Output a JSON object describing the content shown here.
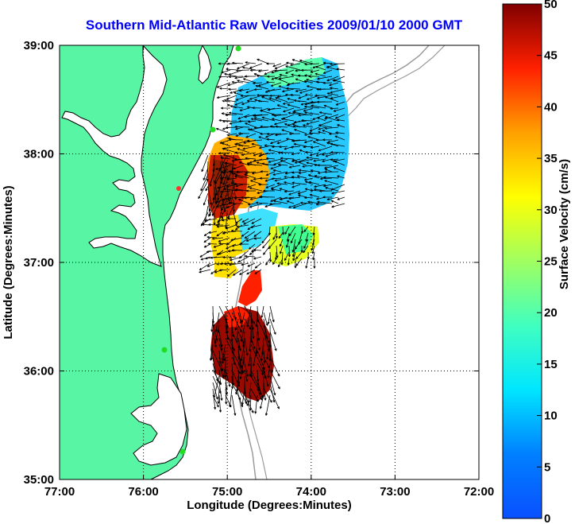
{
  "title": "Southern Mid-Atlantic Raw Velocities 2009/01/10 2000 GMT",
  "axes": {
    "xlabel": "Longitude (Degrees:Minutes)",
    "ylabel": "Latitude (Degrees:Minutes)",
    "xticks": [
      "77:00",
      "76:00",
      "75:00",
      "74:00",
      "73:00",
      "72:00"
    ],
    "yticks": [
      "39:00",
      "38:00",
      "37:00",
      "36:00",
      "35:00"
    ],
    "grid": true,
    "xlim": [
      -77,
      -72
    ],
    "ylim": [
      35,
      39
    ]
  },
  "colorbar": {
    "label": "Surface Velocity (cm/s)",
    "ticks": [
      "0",
      "5",
      "10",
      "15",
      "20",
      "25",
      "30",
      "35",
      "40",
      "45",
      "50"
    ],
    "range": [
      0,
      50
    ],
    "colormap": "jet"
  },
  "colors": {
    "land": "#58f5a4",
    "coastline": "#000000",
    "isobath": "#9a9a9a",
    "title": "#0000ff",
    "station": "#22dd22"
  }
}
